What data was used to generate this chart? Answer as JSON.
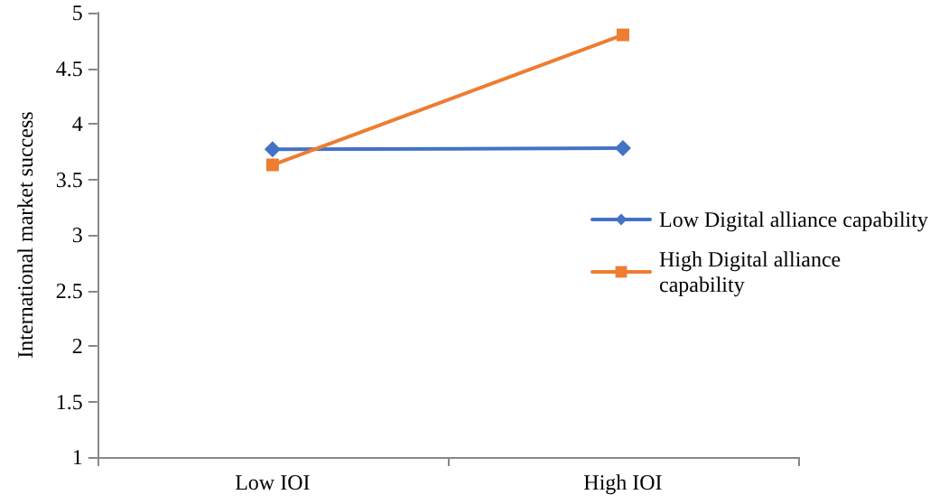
{
  "chart_data": {
    "type": "line",
    "ylabel": "International market success",
    "categories": [
      "Low IOI",
      "High IOI"
    ],
    "series": [
      {
        "name": "Low Digital alliance capability",
        "color": "#4472c4",
        "marker": "diamond",
        "values": [
          3.77,
          3.78
        ]
      },
      {
        "name": "High Digital alliance capability",
        "color": "#ed7d31",
        "marker": "square",
        "values": [
          3.63,
          4.8
        ]
      }
    ],
    "ylim": [
      1,
      5
    ],
    "yticks": [
      1,
      1.5,
      2,
      2.5,
      3,
      3.5,
      4,
      4.5,
      5
    ],
    "grid": false,
    "legend": "right",
    "line_style": "solid"
  }
}
